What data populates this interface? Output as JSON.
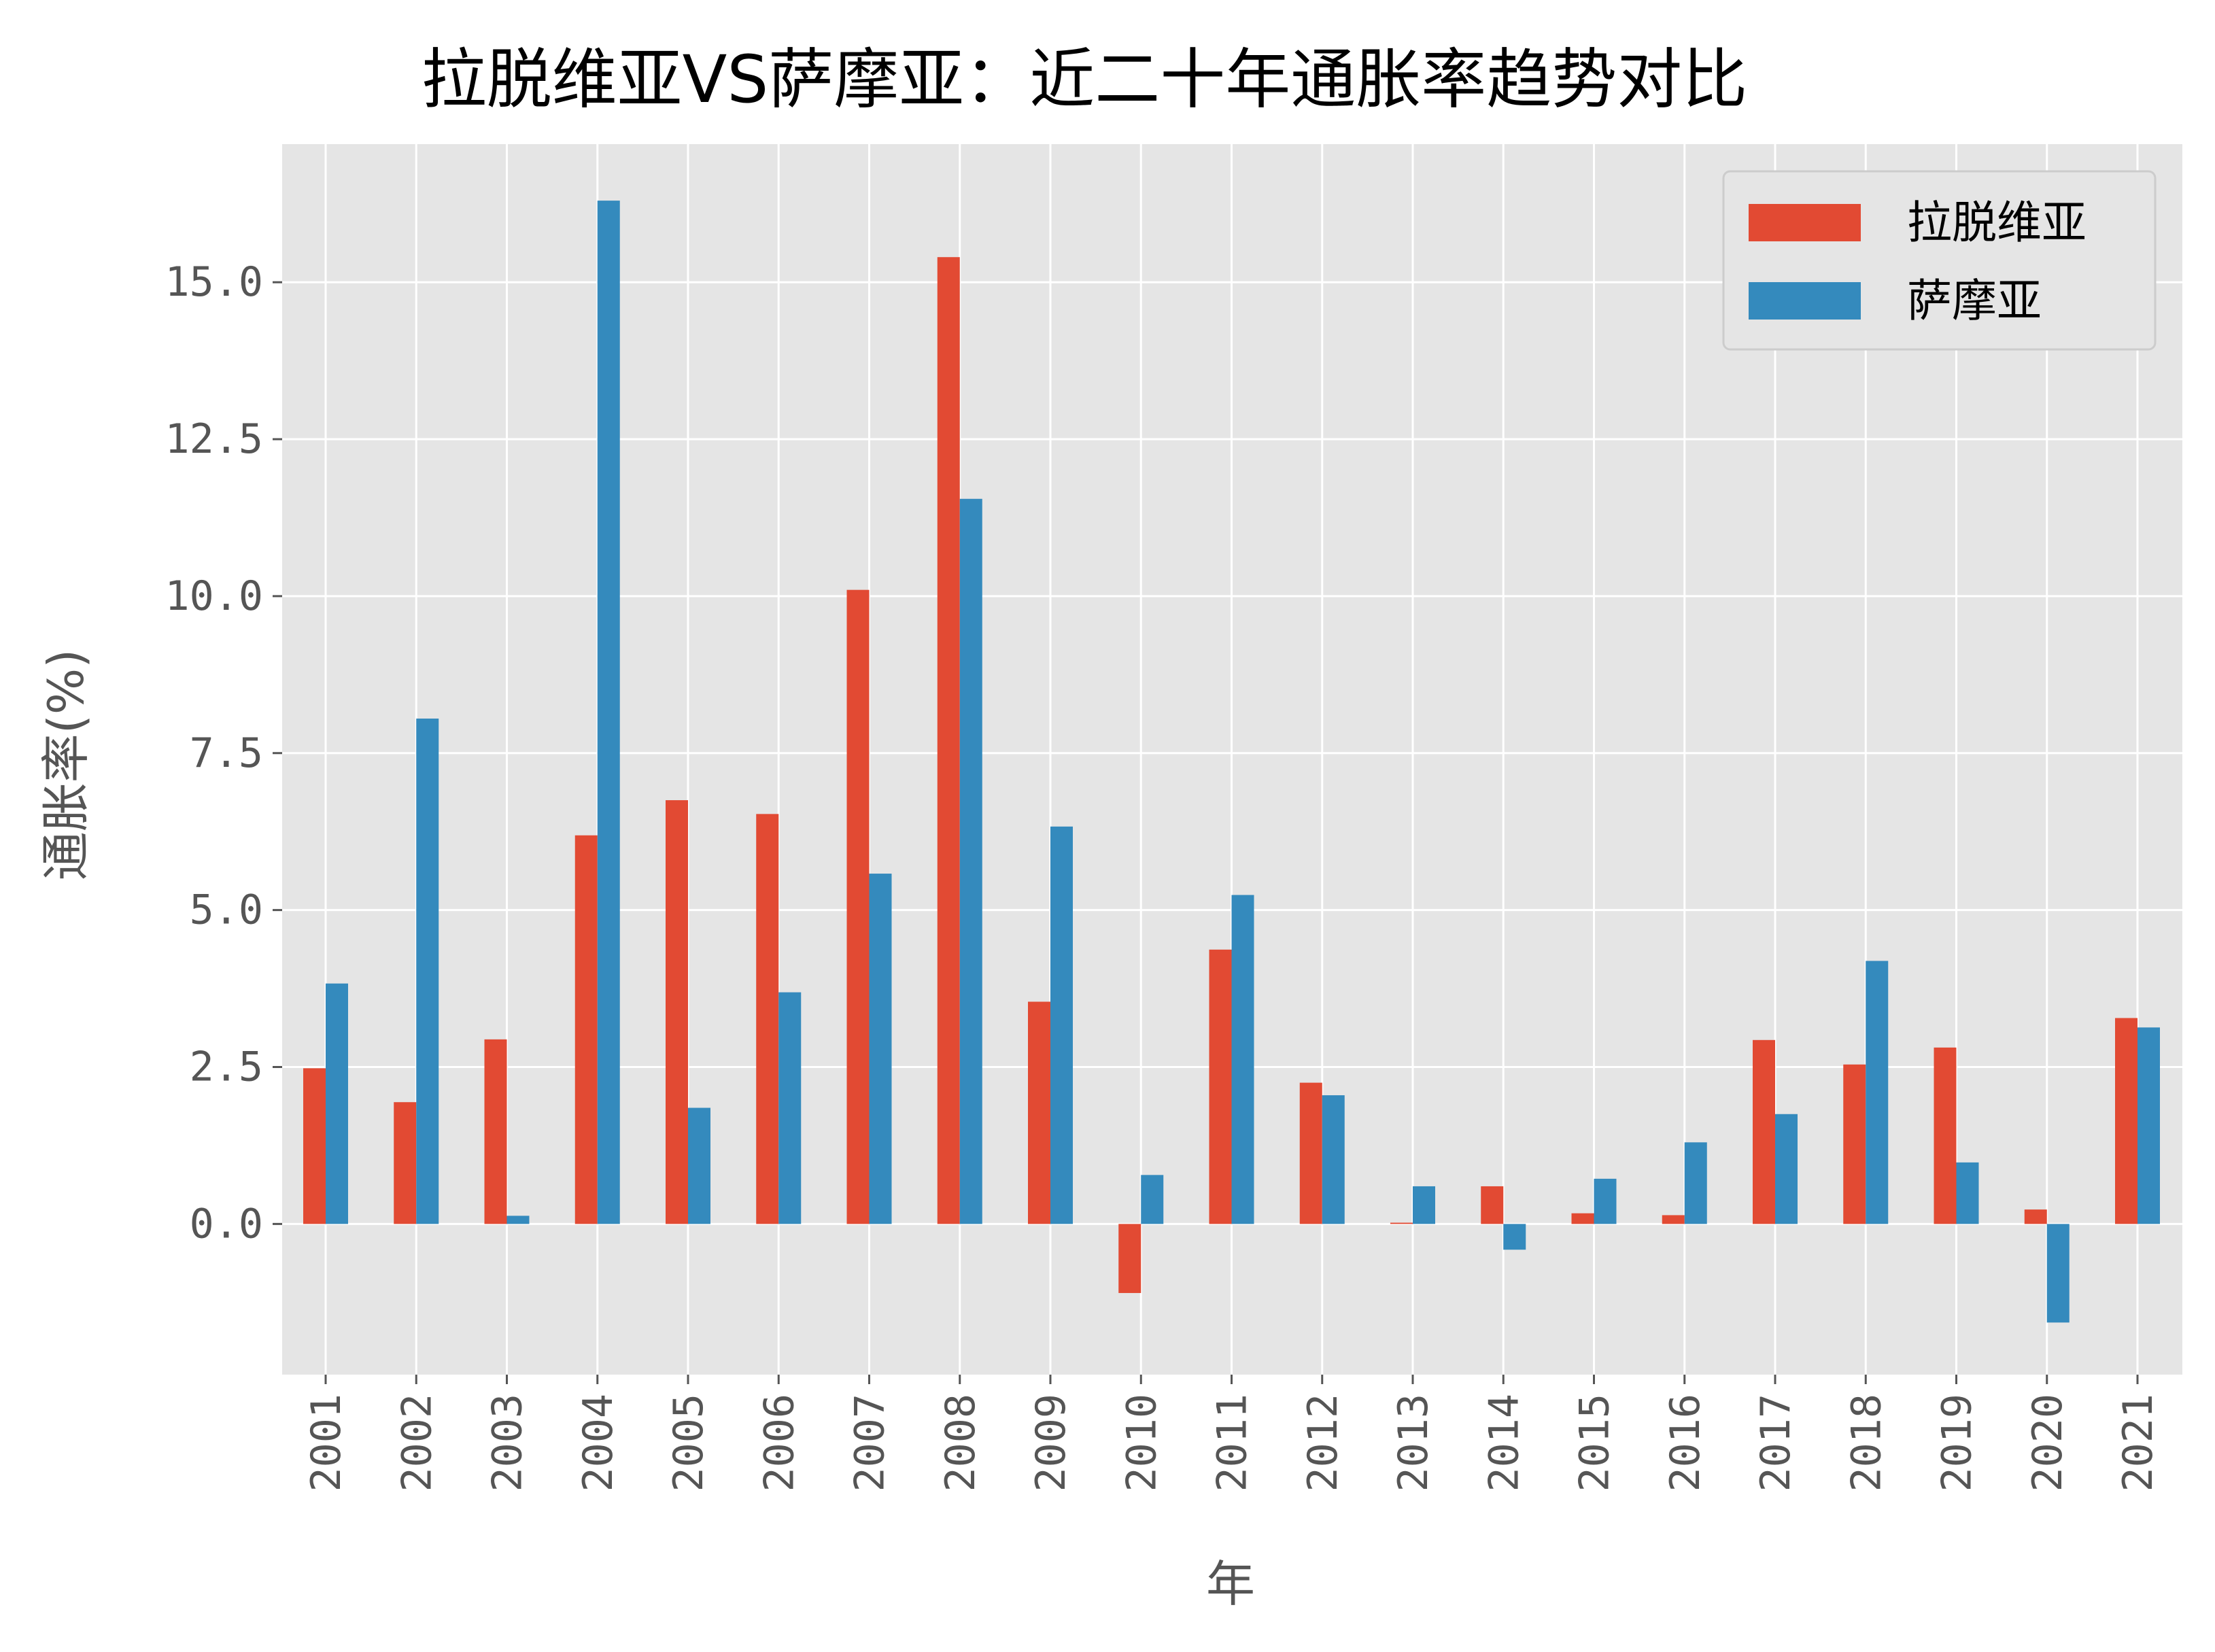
{
  "chart_data": {
    "type": "bar",
    "title": "拉脱维亚VS萨摩亚：近二十年通胀率趋势对比",
    "xlabel": "年",
    "ylabel": "通胀率(%)",
    "categories": [
      "2001",
      "2002",
      "2003",
      "2004",
      "2005",
      "2006",
      "2007",
      "2008",
      "2009",
      "2010",
      "2011",
      "2012",
      "2013",
      "2014",
      "2015",
      "2016",
      "2017",
      "2018",
      "2019",
      "2020",
      "2021"
    ],
    "series": [
      {
        "name": "拉脱维亚",
        "color": "#E24A33",
        "values": [
          2.48,
          1.94,
          2.94,
          6.19,
          6.75,
          6.53,
          10.1,
          15.4,
          3.54,
          -1.1,
          4.37,
          2.25,
          0.02,
          0.6,
          0.17,
          0.14,
          2.93,
          2.54,
          2.81,
          0.23,
          3.28
        ]
      },
      {
        "name": "萨摩亚",
        "color": "#348ABD",
        "values": [
          3.83,
          8.05,
          0.13,
          16.3,
          1.85,
          3.69,
          5.58,
          11.55,
          6.33,
          0.78,
          5.24,
          2.05,
          0.6,
          -0.41,
          0.72,
          1.3,
          1.75,
          4.19,
          0.98,
          -1.57,
          3.13
        ]
      }
    ],
    "yticks": [
      "0.0",
      "2.5",
      "5.0",
      "7.5",
      "10.0",
      "12.5",
      "15.0"
    ],
    "ylim": [
      -2.4,
      17.2
    ],
    "grid": true,
    "legend": "top-right",
    "background": "#E5E5E5",
    "grid_color": "#FFFFFF"
  }
}
